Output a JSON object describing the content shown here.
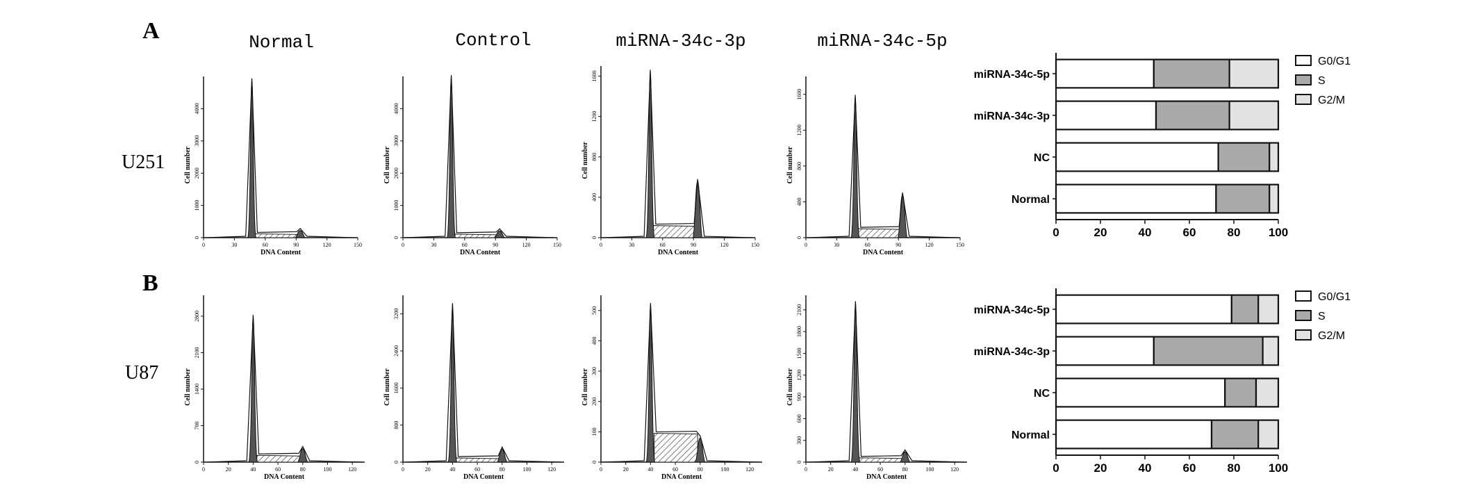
{
  "panel_labels": [
    "A",
    "B"
  ],
  "column_titles": [
    "Normal",
    "Control",
    "miRNA-34c-3p",
    "miRNA-34c-5p"
  ],
  "row_labels": [
    "U251",
    "U87"
  ],
  "histogram_axis": {
    "xlabel": "DNA Content",
    "ylabel": "Cell number"
  },
  "colors": {
    "g0g1": "#ffffff",
    "s": "#aaaaaa",
    "g2m": "#e2e2e2",
    "peak": "#555555",
    "stroke": "#111111"
  },
  "chart_data": [
    {
      "type": "histogram",
      "row": "U251",
      "column": "Normal",
      "xlim": [
        0,
        150
      ],
      "ylim": [
        0,
        5000
      ],
      "xticks": [
        0,
        30,
        60,
        90,
        120,
        150
      ],
      "yticks": [
        0,
        1000,
        2000,
        3000,
        4000
      ],
      "g1_peak": {
        "x": 47,
        "height": 4900
      },
      "g2_peak": {
        "x": 94,
        "height": 220
      },
      "s_level": 120
    },
    {
      "type": "histogram",
      "row": "U251",
      "column": "Control",
      "xlim": [
        0,
        150
      ],
      "ylim": [
        0,
        5000
      ],
      "xticks": [
        0,
        30,
        60,
        90,
        120,
        150
      ],
      "yticks": [
        0,
        1000,
        2000,
        3000,
        4000
      ],
      "g1_peak": {
        "x": 47,
        "height": 5000
      },
      "g2_peak": {
        "x": 94,
        "height": 210
      },
      "s_level": 110
    },
    {
      "type": "histogram",
      "row": "U251",
      "column": "miRNA-34c-3p",
      "xlim": [
        0,
        150
      ],
      "ylim": [
        0,
        1700
      ],
      "xticks": [
        0,
        30,
        60,
        90,
        120,
        150
      ],
      "yticks": [
        0,
        400,
        800,
        1200,
        1600
      ],
      "g1_peak": {
        "x": 48,
        "height": 1650
      },
      "g2_peak": {
        "x": 94,
        "height": 560
      },
      "s_level": 120
    },
    {
      "type": "histogram",
      "row": "U251",
      "column": "miRNA-34c-5p",
      "xlim": [
        0,
        150
      ],
      "ylim": [
        0,
        1800
      ],
      "xticks": [
        0,
        30,
        60,
        90,
        120,
        150
      ],
      "yticks": [
        0,
        400,
        800,
        1200,
        1600
      ],
      "g1_peak": {
        "x": 48,
        "height": 1580
      },
      "g2_peak": {
        "x": 94,
        "height": 480
      },
      "s_level": 100
    },
    {
      "type": "histogram",
      "row": "U87",
      "column": "Normal",
      "xlim": [
        0,
        130
      ],
      "ylim": [
        0,
        3200
      ],
      "xticks": [
        0,
        20,
        40,
        60,
        80,
        100,
        120
      ],
      "yticks": [
        0,
        700,
        1400,
        2100,
        2800
      ],
      "g1_peak": {
        "x": 40,
        "height": 2800
      },
      "g2_peak": {
        "x": 80,
        "height": 260
      },
      "s_level": 130
    },
    {
      "type": "histogram",
      "row": "U87",
      "column": "Control",
      "xlim": [
        0,
        130
      ],
      "ylim": [
        0,
        3600
      ],
      "xticks": [
        0,
        20,
        40,
        60,
        80,
        100,
        120
      ],
      "yticks": [
        0,
        800,
        1600,
        2400,
        3200
      ],
      "g1_peak": {
        "x": 40,
        "height": 3400
      },
      "g2_peak": {
        "x": 80,
        "height": 280
      },
      "s_level": 90
    },
    {
      "type": "histogram",
      "row": "U87",
      "column": "miRNA-34c-3p",
      "xlim": [
        0,
        130
      ],
      "ylim": [
        0,
        550
      ],
      "xticks": [
        0,
        20,
        40,
        60,
        80,
        100,
        120
      ],
      "yticks": [
        0,
        100,
        200,
        300,
        400,
        500
      ],
      "g1_peak": {
        "x": 40,
        "height": 520
      },
      "g2_peak": {
        "x": 80,
        "height": 80
      },
      "s_level": 95
    },
    {
      "type": "histogram",
      "row": "U87",
      "column": "miRNA-34c-5p",
      "xlim": [
        0,
        130
      ],
      "ylim": [
        0,
        2300
      ],
      "xticks": [
        0,
        20,
        40,
        60,
        80,
        100,
        120
      ],
      "yticks": [
        0,
        300,
        600,
        900,
        1200,
        1500,
        1800,
        2100
      ],
      "g1_peak": {
        "x": 40,
        "height": 2200
      },
      "g2_peak": {
        "x": 80,
        "height": 140
      },
      "s_level": 60
    },
    {
      "type": "bar",
      "stacked": true,
      "orientation": "horizontal",
      "row": "U251",
      "categories": [
        "miRNA-34c-5p",
        "miRNA-34c-3p",
        "NC",
        "Normal"
      ],
      "series": [
        {
          "name": "G0/G1",
          "values": [
            44,
            45,
            73,
            72
          ]
        },
        {
          "name": "S",
          "values": [
            34,
            33,
            23,
            24
          ]
        },
        {
          "name": "G2/M",
          "values": [
            22,
            22,
            4,
            4
          ]
        }
      ],
      "xlim": [
        0,
        100
      ],
      "xticks": [
        0,
        20,
        40,
        60,
        80,
        100
      ],
      "legend": "right"
    },
    {
      "type": "bar",
      "stacked": true,
      "orientation": "horizontal",
      "row": "U87",
      "categories": [
        "miRNA-34c-5p",
        "miRNA-34c-3p",
        "NC",
        "Normal"
      ],
      "series": [
        {
          "name": "G0/G1",
          "values": [
            79,
            44,
            76,
            70
          ]
        },
        {
          "name": "S",
          "values": [
            12,
            49,
            14,
            21
          ]
        },
        {
          "name": "G2/M",
          "values": [
            9,
            7,
            10,
            9
          ]
        }
      ],
      "xlim": [
        0,
        100
      ],
      "xticks": [
        0,
        20,
        40,
        60,
        80,
        100
      ],
      "legend": "right"
    }
  ]
}
